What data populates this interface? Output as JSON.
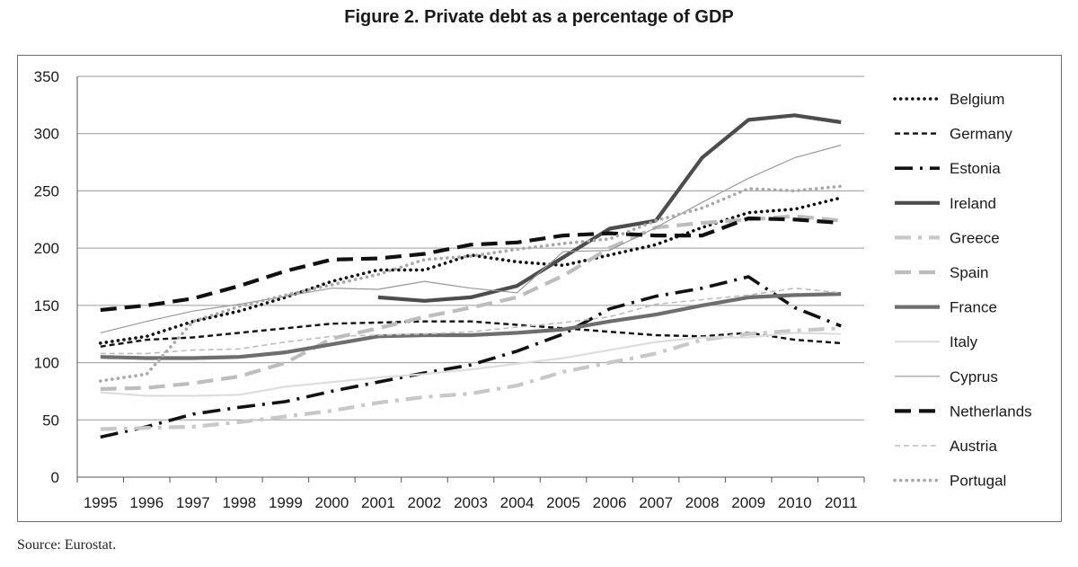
{
  "title": "Figure 2. Private debt as a percentage of GDP",
  "source": "Source: Eurostat.",
  "chart_data": {
    "type": "line",
    "title": "Figure 2. Private debt as a percentage of GDP",
    "xlabel": "",
    "ylabel": "",
    "ylim": [
      0,
      350
    ],
    "yticks": [
      0,
      50,
      100,
      150,
      200,
      250,
      300,
      350
    ],
    "grid": "horizontal",
    "legend_position": "right",
    "x": [
      "1995",
      "1996",
      "1997",
      "1998",
      "1999",
      "2000",
      "2001",
      "2002",
      "2003",
      "2004",
      "2005",
      "2006",
      "2007",
      "2008",
      "2009",
      "2010",
      "2011"
    ],
    "series": [
      {
        "name": "Belgium",
        "color": "#111111",
        "style": "dotted-heavy",
        "values": [
          117,
          123,
          136,
          145,
          157,
          171,
          181,
          181,
          194,
          188,
          185,
          194,
          203,
          218,
          231,
          234,
          244
        ]
      },
      {
        "name": "Germany",
        "color": "#111111",
        "style": "short-dash",
        "values": [
          114,
          120,
          122,
          126,
          130,
          134,
          135,
          136,
          136,
          133,
          130,
          127,
          124,
          123,
          126,
          120,
          117
        ]
      },
      {
        "name": "Estonia",
        "color": "#111111",
        "style": "long-dash-dot",
        "values": [
          35,
          44,
          55,
          61,
          66,
          75,
          83,
          91,
          98,
          110,
          125,
          147,
          158,
          165,
          175,
          148,
          132
        ]
      },
      {
        "name": "Ireland",
        "color": "#4d4d4d",
        "style": "solid-heavy",
        "values": [
          null,
          null,
          null,
          null,
          null,
          null,
          157,
          154,
          157,
          167,
          192,
          217,
          224,
          279,
          312,
          316,
          310
        ]
      },
      {
        "name": "Greece",
        "color": "#c8c8c8",
        "style": "dash-dot-heavy",
        "values": [
          42,
          43,
          44,
          48,
          53,
          58,
          65,
          70,
          73,
          80,
          92,
          100,
          108,
          120,
          125,
          128,
          130
        ]
      },
      {
        "name": "Spain",
        "color": "#bdbdbd",
        "style": "long-dash-heavy",
        "values": [
          77,
          78,
          82,
          88,
          100,
          121,
          130,
          140,
          148,
          157,
          176,
          200,
          218,
          222,
          225,
          228,
          224
        ]
      },
      {
        "name": "France",
        "color": "#6e6e6e",
        "style": "solid-heavy",
        "values": [
          105,
          104,
          104,
          105,
          109,
          116,
          123,
          124,
          124,
          126,
          129,
          136,
          142,
          150,
          157,
          159,
          160
        ]
      },
      {
        "name": "Italy",
        "color": "#dddddd",
        "style": "solid",
        "values": [
          74,
          71,
          71,
          72,
          79,
          83,
          87,
          90,
          94,
          99,
          104,
          111,
          118,
          122,
          122,
          126,
          125
        ]
      },
      {
        "name": "Cyprus",
        "color": "#999999",
        "style": "thin",
        "values": [
          126,
          136,
          145,
          151,
          158,
          165,
          164,
          171,
          165,
          161,
          197,
          198,
          218,
          240,
          261,
          279,
          290
        ]
      },
      {
        "name": "Netherlands",
        "color": "#111111",
        "style": "long-dash-heavy",
        "values": [
          146,
          150,
          156,
          167,
          180,
          190,
          191,
          195,
          203,
          205,
          211,
          213,
          211,
          211,
          226,
          225,
          222
        ]
      },
      {
        "name": "Austria",
        "color": "#bdbdbd",
        "style": "thin-dash",
        "values": [
          108,
          108,
          111,
          112,
          118,
          123,
          124,
          125,
          127,
          131,
          135,
          140,
          151,
          155,
          159,
          165,
          161
        ]
      },
      {
        "name": "Portugal",
        "color": "#a8a8a8",
        "style": "dotted-heavy",
        "values": [
          84,
          90,
          136,
          149,
          159,
          168,
          177,
          190,
          193,
          199,
          204,
          208,
          224,
          235,
          252,
          250,
          254
        ]
      }
    ]
  }
}
